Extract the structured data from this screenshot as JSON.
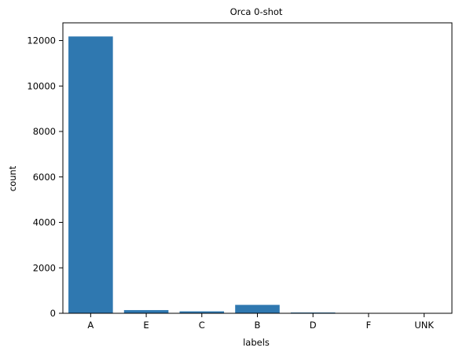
{
  "chart_data": {
    "type": "bar",
    "title": "Orca 0-shot",
    "xlabel": "labels",
    "ylabel": "count",
    "categories": [
      "A",
      "E",
      "C",
      "B",
      "D",
      "F",
      "UNK"
    ],
    "values": [
      12180,
      140,
      85,
      370,
      35,
      0,
      0
    ],
    "ylim": [
      0,
      12780
    ],
    "yticks": [
      0,
      2000,
      4000,
      6000,
      8000,
      10000,
      12000
    ],
    "bar_color": "#2f78b0",
    "grid": false,
    "legend": "none"
  }
}
